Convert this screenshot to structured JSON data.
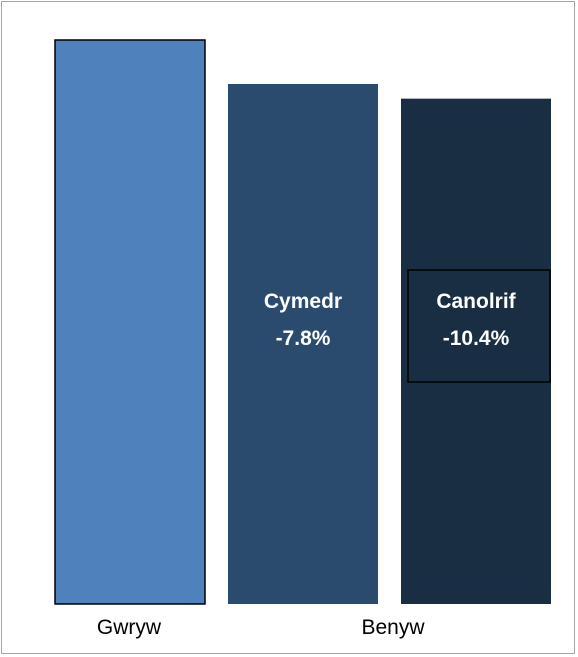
{
  "chart_data": {
    "type": "bar",
    "title": "",
    "xlabel": "",
    "ylabel": "",
    "categories": [
      "Gwryw",
      "Benyw"
    ],
    "bars": [
      {
        "category": "Gwryw",
        "value": 100,
        "color": "#4f81bd",
        "outlined": true
      },
      {
        "category": "Benyw",
        "value": 92.2,
        "color": "#2a4a6e",
        "label_line1": "Cymedr",
        "label_line2": "-7.8%"
      },
      {
        "category": "Benyw",
        "value": 89.6,
        "color": "#1a2e43",
        "label_line1": "Canolrif",
        "label_line2": "-10.4%",
        "label_boxed": true
      }
    ],
    "ylim": [
      0,
      100
    ],
    "grid": false,
    "legend": "none"
  }
}
